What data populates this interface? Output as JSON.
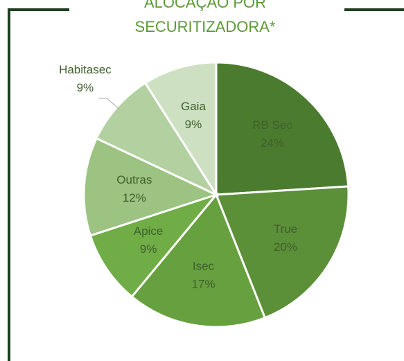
{
  "chart_data": {
    "type": "pie",
    "title": "ALOCAÇÃO POR SECURITIZADORA*",
    "categories": [
      "RB Sec",
      "True",
      "Isec",
      "Apice",
      "Outras",
      "Habitasec",
      "Gaia"
    ],
    "values": [
      24,
      20,
      17,
      9,
      12,
      9,
      9
    ],
    "value_labels": [
      "24%",
      "20%",
      "17%",
      "9%",
      "12%",
      "9%",
      "9%"
    ],
    "colors": [
      "#4b7b2f",
      "#5b8f38",
      "#67a03f",
      "#70ad47",
      "#9cc382",
      "#b3d1a0",
      "#cde0c1"
    ]
  }
}
